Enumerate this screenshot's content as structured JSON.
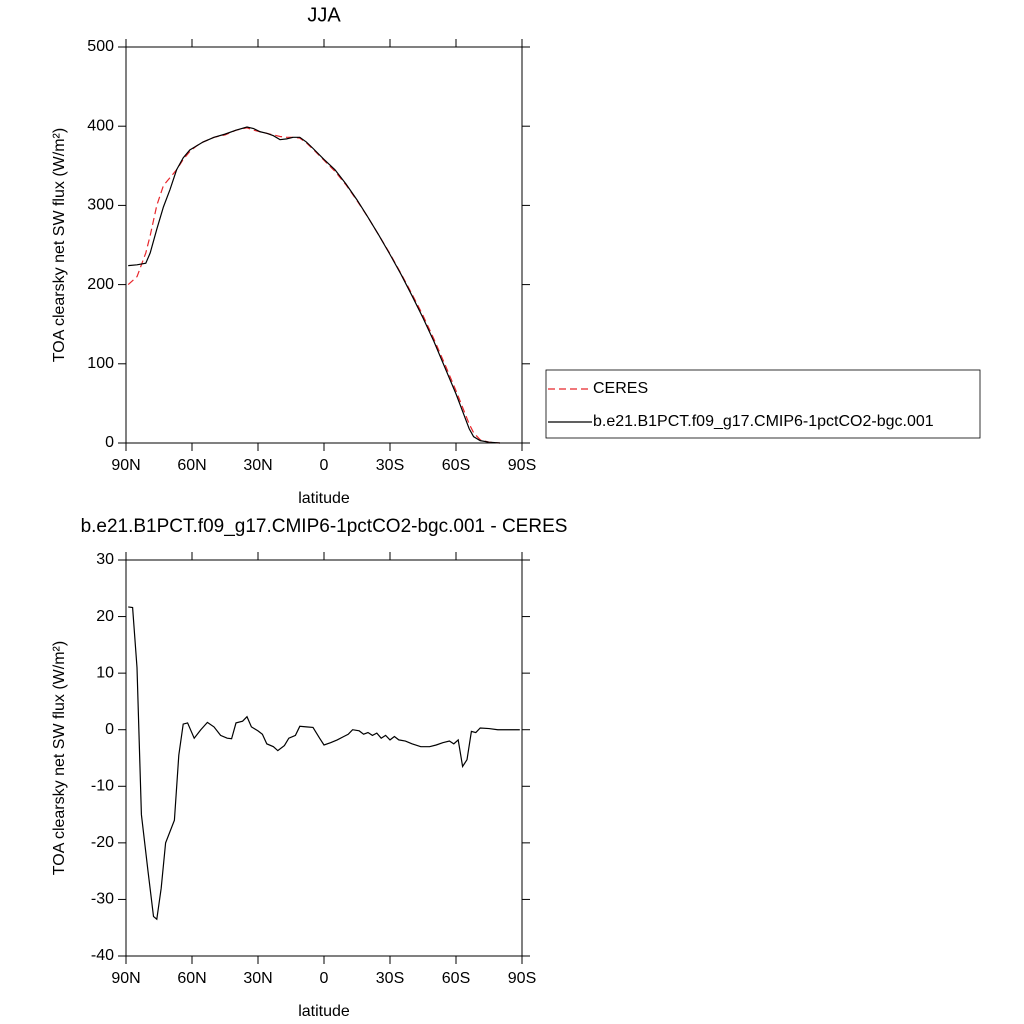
{
  "chart_data": [
    {
      "type": "line",
      "title": "JJA",
      "xlabel": "latitude",
      "ylabel": "TOA clearsky net SW flux (W/m²)",
      "xlim": [
        90,
        -90
      ],
      "ylim": [
        0,
        500
      ],
      "xticks": [
        {
          "value": 90,
          "label": "90N"
        },
        {
          "value": 60,
          "label": "60N"
        },
        {
          "value": 30,
          "label": "30N"
        },
        0,
        {
          "value": -30,
          "label": "30S"
        },
        {
          "value": -60,
          "label": "60S"
        },
        {
          "value": -90,
          "label": "90S"
        }
      ],
      "yticks": [
        0,
        100,
        200,
        300,
        400,
        500
      ],
      "legend": "outside-right",
      "x": [
        89,
        85,
        81,
        79,
        76,
        73,
        70,
        67,
        64,
        61,
        58,
        55,
        50,
        45,
        40,
        35,
        32,
        29,
        26,
        23,
        20,
        17,
        14,
        11,
        8,
        5,
        0,
        -5,
        -10,
        -15,
        -20,
        -25,
        -30,
        -35,
        -40,
        -45,
        -50,
        -55,
        -60,
        -63,
        -66,
        -68,
        -71,
        -75,
        -80
      ],
      "series": [
        {
          "name": "CERES",
          "color": "#e8262b",
          "dash": "7,4",
          "values": [
            200,
            210,
            240,
            262,
            300,
            325,
            335,
            345,
            358,
            368,
            375,
            380,
            386,
            389,
            395,
            398,
            395,
            393,
            391,
            389,
            387,
            386,
            386,
            385,
            379,
            371,
            357,
            343,
            326,
            306,
            285,
            262,
            239,
            214,
            188,
            161,
            131,
            99,
            66,
            45,
            24,
            13,
            4,
            1,
            0
          ]
        },
        {
          "name": "b.e21.B1PCT.f09_g17.CMIP6-1pctCO2-bgc.001",
          "color": "#000000",
          "values": [
            224,
            225,
            227,
            240,
            270,
            298,
            320,
            345,
            360,
            370,
            375,
            380,
            386,
            390,
            395,
            399,
            397,
            393,
            391,
            388,
            383,
            384,
            386,
            386,
            380,
            372,
            358,
            345,
            327,
            307,
            285,
            262,
            238,
            213,
            186,
            158,
            128,
            95,
            62,
            40,
            18,
            8,
            3,
            1,
            0
          ]
        }
      ]
    },
    {
      "type": "line",
      "title": "b.e21.B1PCT.f09_g17.CMIP6-1pctCO2-bgc.001 - CERES",
      "xlabel": "latitude",
      "ylabel": "TOA clearsky net SW flux (W/m²)",
      "xlim": [
        90,
        -90
      ],
      "ylim": [
        -40,
        30
      ],
      "xticks": [
        {
          "value": 90,
          "label": "90N"
        },
        {
          "value": 60,
          "label": "60N"
        },
        {
          "value": 30,
          "label": "30N"
        },
        0,
        {
          "value": -30,
          "label": "30S"
        },
        {
          "value": -60,
          "label": "60S"
        },
        {
          "value": -90,
          "label": "90S"
        }
      ],
      "yticks": [
        -40,
        -30,
        -20,
        -10,
        0,
        10,
        20,
        30
      ],
      "x": [
        89,
        87,
        85,
        83,
        80,
        77.5,
        76,
        74,
        72,
        68,
        66,
        64,
        62,
        59,
        56,
        53,
        50,
        47,
        44,
        42,
        40,
        37,
        35,
        33,
        30,
        28,
        26,
        23,
        21,
        18,
        16,
        13,
        11,
        8,
        5,
        2,
        0,
        -3,
        -6,
        -9,
        -11,
        -13,
        -16,
        -18,
        -20,
        -22,
        -24,
        -26,
        -28,
        -30,
        -32,
        -34,
        -37,
        -40,
        -44,
        -48,
        -51,
        -54,
        -57,
        -59,
        -61,
        -63,
        -65,
        -67,
        -69,
        -71,
        -75,
        -79,
        -85,
        -89
      ],
      "series": [
        {
          "color": "#000000",
          "values": [
            21.7,
            21.6,
            11,
            -15,
            -25,
            -33,
            -33.5,
            -28,
            -20,
            -16,
            -4.5,
            1,
            1.2,
            -1.5,
            0,
            1.3,
            0.5,
            -1,
            -1.5,
            -1.6,
            1.2,
            1.5,
            2.3,
            0.5,
            -0.2,
            -0.8,
            -2.5,
            -3,
            -3.7,
            -2.8,
            -1.5,
            -1,
            0.6,
            0.5,
            0.4,
            -1.5,
            -2.7,
            -2.3,
            -1.8,
            -1.2,
            -0.8,
            0,
            -0.2,
            -0.8,
            -0.5,
            -1,
            -0.6,
            -1.5,
            -1,
            -1.8,
            -1.2,
            -1.8,
            -2,
            -2.5,
            -3,
            -3,
            -2.7,
            -2.3,
            -2,
            -2.5,
            -1.8,
            -6.5,
            -5.3,
            -0.3,
            -0.5,
            0.3,
            0.2,
            0,
            0,
            0
          ]
        }
      ]
    }
  ]
}
